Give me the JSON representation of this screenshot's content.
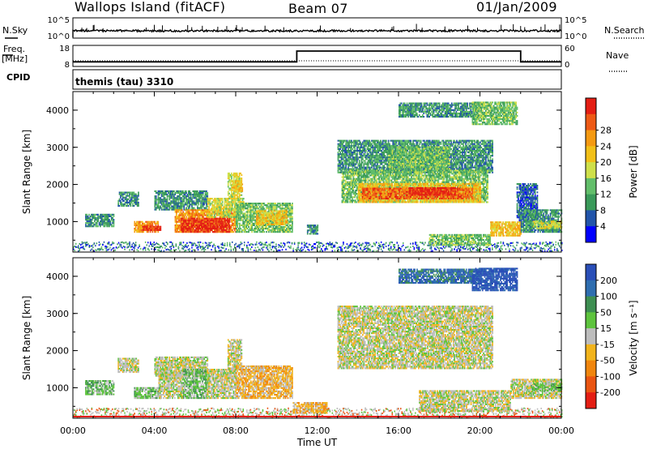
{
  "header": {
    "station": "Wallops Island (fitACF)",
    "beam": "Beam 07",
    "date": "01/Jan/2009"
  },
  "side_labels": {
    "nsky": "N.Sky",
    "nsearch": "N.Search",
    "freq": "Freq.",
    "freq_unit": "[MHz]",
    "nave": "Nave",
    "cpid": "CPID"
  },
  "cpid_text": "themis (tau) 3310",
  "colors": {
    "background": "#ffffff",
    "axis": "#000000"
  },
  "chart_data": [
    {
      "type": "line",
      "panel": "noise",
      "yticks_left": [
        "10^5",
        "10^0"
      ],
      "yticks_right": [
        "10^5",
        "10^0"
      ],
      "note_series": [
        "N.Sky (solid)",
        "N.Search (dotted)"
      ],
      "approx_level": "near lower limit, flat with small spikes"
    },
    {
      "type": "line",
      "panel": "frequency",
      "yticks_left": [
        "18",
        "8"
      ],
      "yticks_right": [
        "60",
        "0"
      ],
      "freq_steps": [
        {
          "from_hour": 0,
          "to_hour": 11.0,
          "mhz": 10.2
        },
        {
          "from_hour": 11.0,
          "to_hour": 22.0,
          "mhz": 15.3
        },
        {
          "from_hour": 22.0,
          "to_hour": 24.0,
          "mhz": 10.2
        }
      ],
      "nave_level": 0
    },
    {
      "type": "heatmap",
      "panel": "power",
      "ylabel": "Slant Range [km]",
      "yticks": [
        "1000",
        "2000",
        "3000",
        "4000"
      ],
      "ylim": [
        180,
        4500
      ],
      "xlim": [
        0,
        24
      ],
      "colorbar": {
        "label": "Power [dB]",
        "ticks": [
          "4",
          "8",
          "12",
          "16",
          "20",
          "24",
          "28"
        ],
        "colors": [
          "#0000ff",
          "#2255aa",
          "#3a9a5a",
          "#62be6a",
          "#cfe04a",
          "#f2c018",
          "#f59a12",
          "#ee5a16",
          "#e41e14"
        ]
      },
      "regions": [
        {
          "h0": 0.6,
          "h1": 2.0,
          "r0": 850,
          "r1": 1200,
          "level": 2
        },
        {
          "h0": 2.2,
          "h1": 3.2,
          "r0": 1400,
          "r1": 1800,
          "level": 2
        },
        {
          "h0": 3.0,
          "h1": 4.2,
          "r0": 700,
          "r1": 1000,
          "level": 6
        },
        {
          "h0": 3.4,
          "h1": 4.3,
          "r0": 750,
          "r1": 880,
          "level": 8
        },
        {
          "h0": 4.0,
          "h1": 6.6,
          "r0": 1300,
          "r1": 1800,
          "level": 2
        },
        {
          "h0": 5.0,
          "h1": 8.0,
          "r0": 700,
          "r1": 1300,
          "level": 6
        },
        {
          "h0": 5.3,
          "h1": 7.7,
          "r0": 700,
          "r1": 1100,
          "level": 8
        },
        {
          "h0": 6.6,
          "h1": 8.4,
          "r0": 1100,
          "r1": 1600,
          "level": 4
        },
        {
          "h0": 7.6,
          "h1": 8.3,
          "r0": 1600,
          "r1": 2300,
          "level": 4
        },
        {
          "h0": 7.8,
          "h1": 8.3,
          "r0": 1800,
          "r1": 2100,
          "level": 5
        },
        {
          "h0": 8.0,
          "h1": 10.8,
          "r0": 700,
          "r1": 1500,
          "level": 3
        },
        {
          "h0": 9.0,
          "h1": 10.5,
          "r0": 900,
          "r1": 1300,
          "level": 5
        },
        {
          "h0": 11.5,
          "h1": 12.0,
          "r0": 650,
          "r1": 900,
          "level": 2
        },
        {
          "h0": 13.0,
          "h1": 20.6,
          "r0": 2300,
          "r1": 3200,
          "level": 2
        },
        {
          "h0": 13.2,
          "h1": 20.4,
          "r0": 1500,
          "r1": 2400,
          "level": 3
        },
        {
          "h0": 14.0,
          "h1": 20.0,
          "r0": 1500,
          "r1": 2000,
          "level": 5
        },
        {
          "h0": 14.2,
          "h1": 19.6,
          "r0": 1600,
          "r1": 1900,
          "level": 7
        },
        {
          "h0": 16.5,
          "h1": 18.8,
          "r0": 1700,
          "r1": 1900,
          "level": 8
        },
        {
          "h0": 15.5,
          "h1": 18.5,
          "r0": 2400,
          "r1": 3000,
          "level": 3
        },
        {
          "h0": 16.0,
          "h1": 20.0,
          "r0": 3800,
          "r1": 4200,
          "level": 2
        },
        {
          "h0": 19.6,
          "h1": 21.8,
          "r0": 3600,
          "r1": 4200,
          "level": 3
        },
        {
          "h0": 21.8,
          "h1": 22.8,
          "r0": 1000,
          "r1": 2000,
          "level": 1
        },
        {
          "h0": 17.5,
          "h1": 20.5,
          "r0": 350,
          "r1": 650,
          "level": 3
        },
        {
          "h0": 20.5,
          "h1": 22.0,
          "r0": 600,
          "r1": 1000,
          "level": 5
        },
        {
          "h0": 22.0,
          "h1": 24.0,
          "r0": 700,
          "r1": 1300,
          "level": 2
        },
        {
          "h0": 22.6,
          "h1": 24.0,
          "r0": 800,
          "r1": 1000,
          "level": 4
        }
      ]
    },
    {
      "type": "heatmap",
      "panel": "velocity",
      "ylabel": "Slant Range [km]",
      "yticks": [
        "1000",
        "2000",
        "3000",
        "4000"
      ],
      "ylim": [
        180,
        4500
      ],
      "xlim": [
        0,
        24
      ],
      "xticks": [
        "00:00",
        "04:00",
        "08:00",
        "12:00",
        "16:00",
        "20:00",
        "00:00"
      ],
      "xlabel": "Time UT",
      "colorbar": {
        "label": "Velocity [m s⁻¹]",
        "ticks": [
          "200",
          "100",
          "50",
          "15",
          "-15",
          "-50",
          "-100",
          "-200"
        ],
        "colors": [
          "#2a4fb8",
          "#2f6eb0",
          "#3e8f52",
          "#5ec43e",
          "#bdbdbd",
          "#f2b41c",
          "#f0860e",
          "#ea5512",
          "#e41e14"
        ]
      },
      "regions": [
        {
          "h0": 0.6,
          "h1": 2.0,
          "r0": 800,
          "r1": 1200,
          "level": 3
        },
        {
          "h0": 2.2,
          "h1": 3.2,
          "r0": 1400,
          "r1": 1800,
          "level": 4
        },
        {
          "h0": 3.0,
          "h1": 4.3,
          "r0": 700,
          "r1": 1000,
          "level": 3
        },
        {
          "h0": 4.0,
          "h1": 6.6,
          "r0": 1300,
          "r1": 1800,
          "level": 4
        },
        {
          "h0": 4.2,
          "h1": 5.4,
          "r0": 700,
          "r1": 1400,
          "level": 4
        },
        {
          "h0": 5.4,
          "h1": 6.6,
          "r0": 700,
          "r1": 1500,
          "level": 3
        },
        {
          "h0": 6.6,
          "h1": 8.0,
          "r0": 700,
          "r1": 1500,
          "level": 4
        },
        {
          "h0": 7.6,
          "h1": 8.3,
          "r0": 1500,
          "r1": 2300,
          "level": 4
        },
        {
          "h0": 8.0,
          "h1": 10.8,
          "r0": 700,
          "r1": 1600,
          "level": 5
        },
        {
          "h0": 10.8,
          "h1": 12.5,
          "r0": 300,
          "r1": 600,
          "level": 5
        },
        {
          "h0": 13.0,
          "h1": 20.6,
          "r0": 1500,
          "r1": 3200,
          "level": 4
        },
        {
          "h0": 16.0,
          "h1": 20.0,
          "r0": 3800,
          "r1": 4200,
          "level": 1
        },
        {
          "h0": 19.6,
          "h1": 21.8,
          "r0": 3600,
          "r1": 4200,
          "level": 0
        },
        {
          "h0": 17.0,
          "h1": 21.5,
          "r0": 350,
          "r1": 900,
          "level": 4
        },
        {
          "h0": 21.5,
          "h1": 24.0,
          "r0": 700,
          "r1": 1200,
          "level": 4
        },
        {
          "h0": 22.5,
          "h1": 24.0,
          "r0": 900,
          "r1": 1100,
          "level": 3
        }
      ]
    }
  ]
}
